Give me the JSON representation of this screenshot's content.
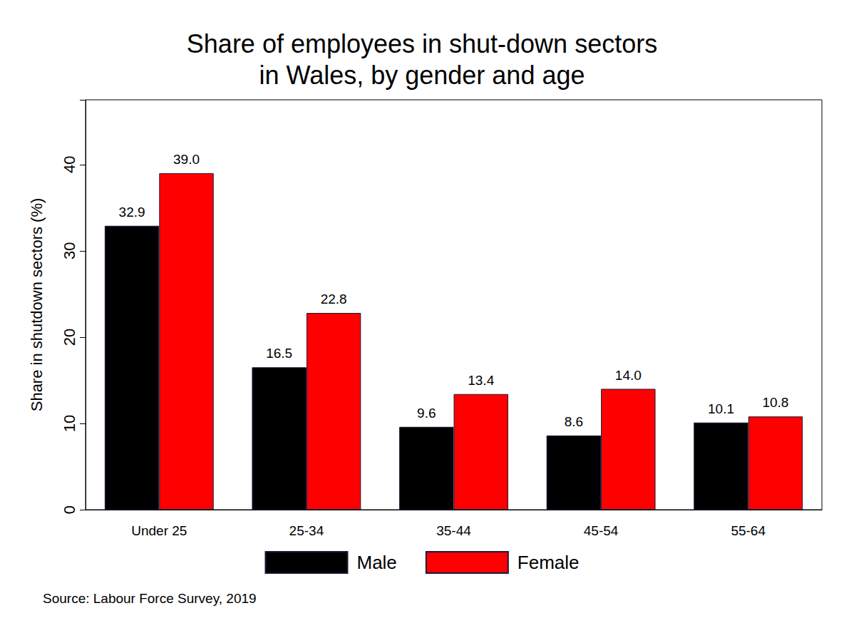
{
  "chart_data": {
    "type": "bar",
    "title": "Share of employees in shut-down sectors\nin Wales, by gender and age",
    "y_label": "Share in shutdown sectors (%)",
    "annotations": [
      "Source: Labour Force Survey, 2019"
    ],
    "categories": [
      "Under 25",
      "25-34",
      "35-44",
      "45-54",
      "55-64"
    ],
    "series": [
      {
        "name": "Male",
        "color": "#000000",
        "values": [
          32.9,
          16.5,
          9.6,
          8.6,
          10.1
        ],
        "value_labels": [
          "32.9",
          "16.5",
          "9.6",
          "8.6",
          "10.1"
        ]
      },
      {
        "name": "Female",
        "color": "#ff0000",
        "values": [
          39.0,
          22.8,
          13.4,
          14.0,
          10.8
        ],
        "value_labels": [
          "39.0",
          "22.8",
          "13.4",
          "14.0",
          "10.8"
        ]
      }
    ],
    "ylim": [
      0,
      47.5
    ],
    "yticks": [
      0,
      10,
      20,
      30,
      40
    ],
    "grid": false,
    "legend": "bottom",
    "data_labels": true
  }
}
